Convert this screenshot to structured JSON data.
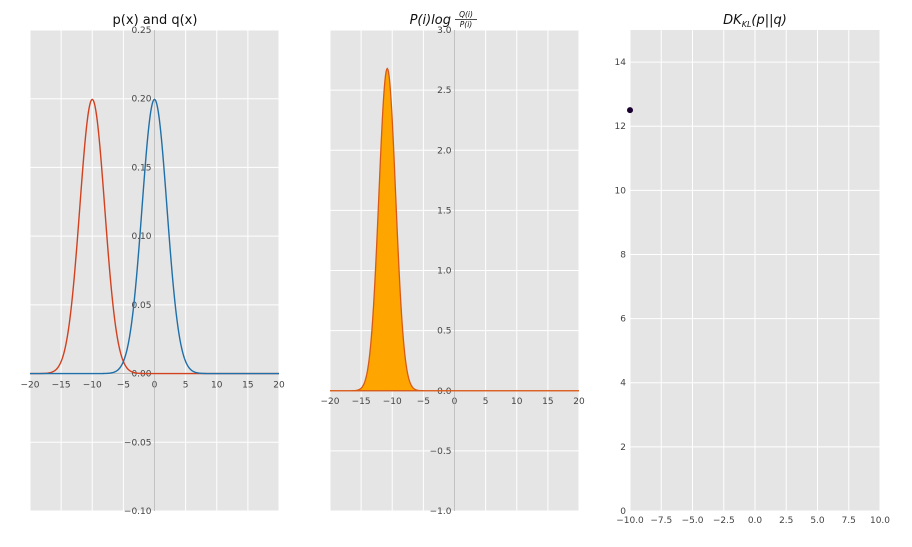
{
  "colors": {
    "panel_bg": "#e5e5e5",
    "grid": "#ffffff",
    "p_line": "#d1411f",
    "q_line": "#1f6fa8",
    "fill": "#ffa500",
    "fill_edge": "#d85a18",
    "point": "#1a0030",
    "axis_text": "#444444",
    "title": "#111111"
  },
  "chart_data": [
    {
      "type": "line",
      "title": "p(x) and q(x)",
      "xlim": [
        -20,
        20
      ],
      "ylim": [
        -0.1,
        0.25
      ],
      "x_ticks": [
        -20,
        -15,
        -10,
        -5,
        0,
        5,
        10,
        15,
        20
      ],
      "x_tick_labels": [
        "−20",
        "−15",
        "−10",
        "−5",
        "0",
        "5",
        "10",
        "15",
        "20"
      ],
      "y_ticks": [
        -0.1,
        -0.05,
        0.05,
        0.1,
        0.15,
        0.2,
        0.25
      ],
      "y_tick_labels": [
        "−0.10",
        "−0.05",
        "0.05",
        "0.10",
        "0.15",
        "0.20",
        "0.25"
      ],
      "zero_label": "0.00",
      "series": [
        {
          "name": "p(x)",
          "dist": "normal",
          "mean": -10,
          "sd": 2,
          "color_key": "p_line"
        },
        {
          "name": "q(x)",
          "dist": "normal",
          "mean": 0,
          "sd": 2,
          "color_key": "q_line"
        }
      ]
    },
    {
      "type": "area",
      "title_main": "P(i)log",
      "title_frac_num": "Q(i)",
      "title_frac_den": "P(i)",
      "xlim": [
        -20,
        20
      ],
      "ylim": [
        -1.0,
        3.0
      ],
      "x_ticks": [
        -20,
        -15,
        -10,
        -5,
        0,
        5,
        10,
        15,
        20
      ],
      "x_tick_labels": [
        "−20",
        "−15",
        "−10",
        "−5",
        "0",
        "5",
        "10",
        "15",
        "20"
      ],
      "y_ticks": [
        -1.0,
        -0.5,
        0.5,
        1.0,
        1.5,
        2.0,
        2.5,
        3.0
      ],
      "y_tick_labels": [
        "−1.0",
        "−0.5",
        "0.5",
        "1.0",
        "1.5",
        "2.0",
        "2.5",
        "3.0"
      ],
      "zero_label": "0.0",
      "series": [
        {
          "name": "P(i)log(P(i)/Q(i))",
          "peak_x": -10.8,
          "peak_y": 2.68,
          "sd": 1.35
        }
      ]
    },
    {
      "type": "scatter",
      "title_main": "DK",
      "title_sub": "KL",
      "title_rest": "(p||q)",
      "xlim": [
        -10,
        10
      ],
      "ylim": [
        0,
        15
      ],
      "x_ticks": [
        -10,
        -7.5,
        -5,
        -2.5,
        0,
        2.5,
        5,
        7.5,
        10
      ],
      "x_tick_labels": [
        "−10.0",
        "−7.5",
        "−5.0",
        "−2.5",
        "0.0",
        "2.5",
        "5.0",
        "7.5",
        "10.0"
      ],
      "y_ticks": [
        0,
        2,
        4,
        6,
        8,
        10,
        12,
        14
      ],
      "y_tick_labels": [
        "0",
        "2",
        "4",
        "6",
        "8",
        "10",
        "12",
        "14"
      ],
      "points": [
        {
          "x": -10,
          "y": 12.5
        }
      ]
    }
  ]
}
